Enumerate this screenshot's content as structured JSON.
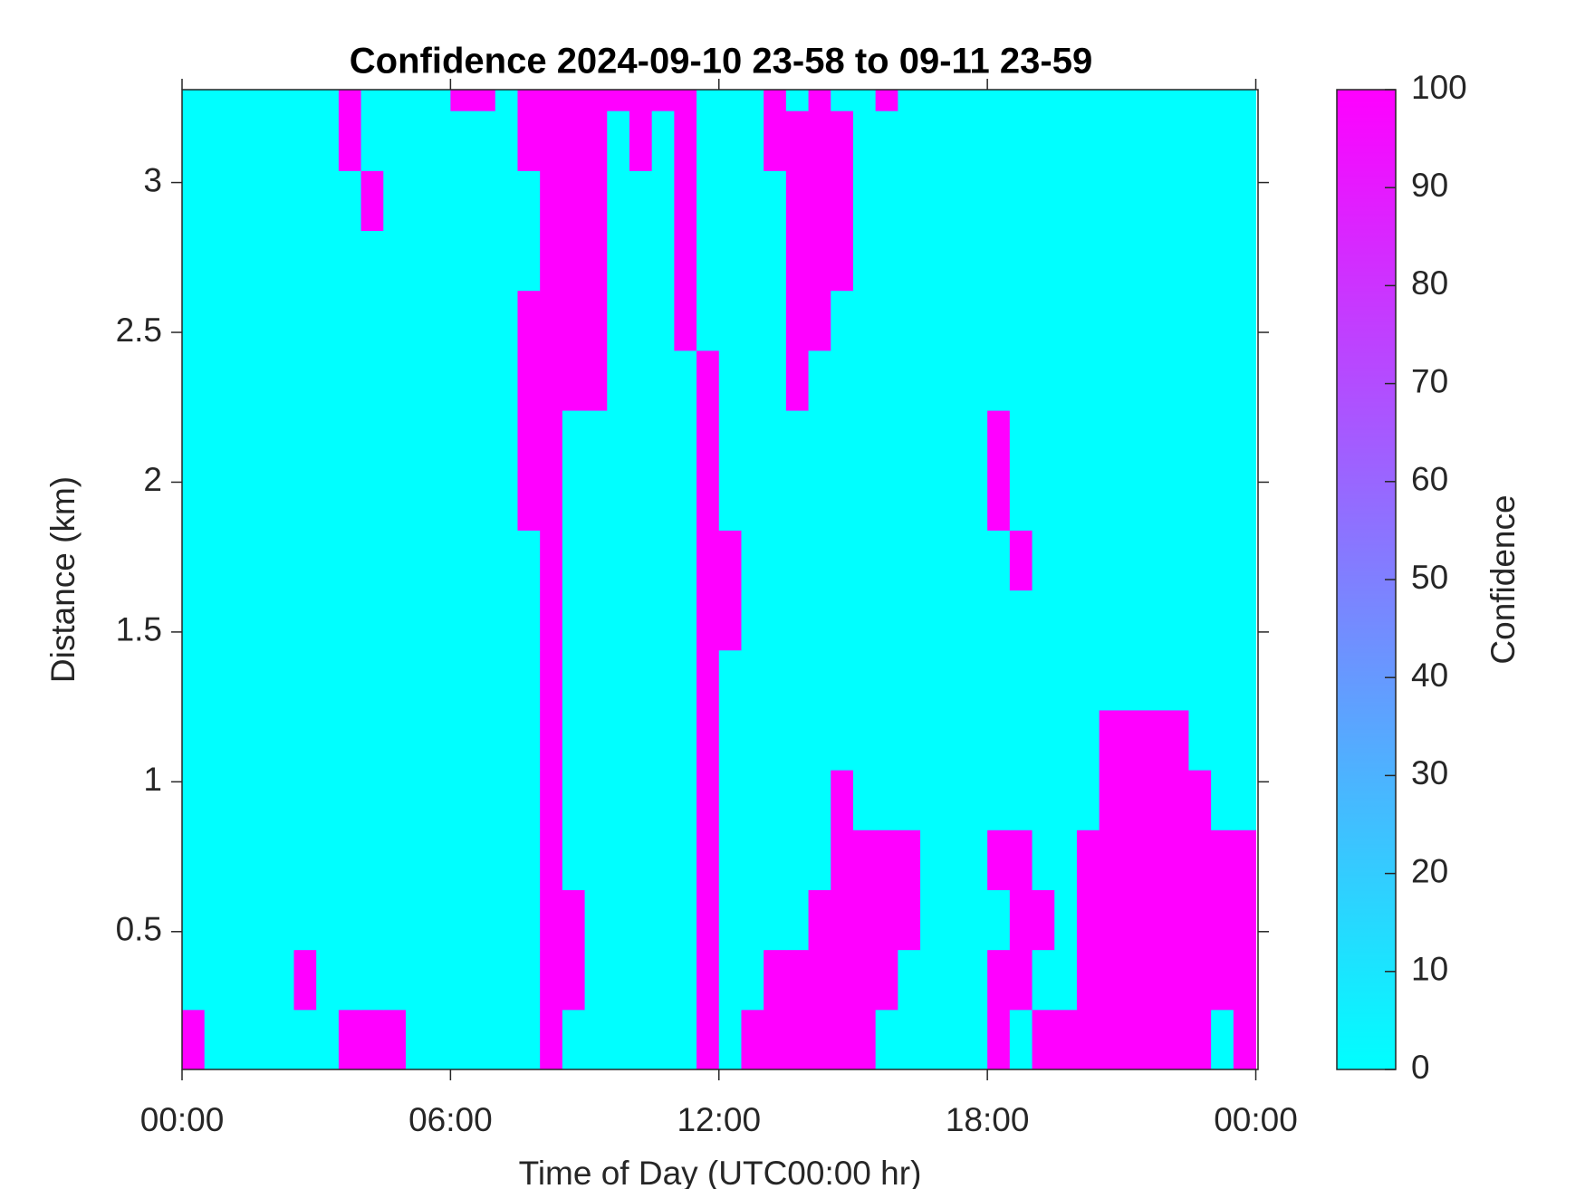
{
  "chart_data": {
    "type": "heatmap",
    "title": "Confidence 2024-09-10 23-58 to 09-11 23-59",
    "x_label": "Time of Day (UTC00:00 hr)",
    "y_label": "Distance (km)",
    "colorbar_label": "Confidence",
    "colormap": [
      "#00ffff",
      "#ff00ff"
    ],
    "clim": [
      0,
      100
    ],
    "cticks": [
      0,
      10,
      20,
      30,
      40,
      50,
      60,
      70,
      80,
      90,
      100
    ],
    "xlim": [
      0,
      24.05
    ],
    "xticks": [
      {
        "value": 0,
        "label": "00:00"
      },
      {
        "value": 6,
        "label": "06:00"
      },
      {
        "value": 12,
        "label": "12:00"
      },
      {
        "value": 18,
        "label": "18:00"
      },
      {
        "value": 24,
        "label": "00:00"
      }
    ],
    "ylim": [
      0.04,
      3.31
    ],
    "yticks": [
      0.5,
      1,
      1.5,
      2,
      2.5,
      3
    ],
    "x": [
      0.25,
      0.75,
      1.25,
      1.75,
      2.25,
      2.75,
      3.25,
      3.75,
      4.25,
      4.75,
      5.25,
      5.75,
      6.25,
      6.75,
      7.25,
      7.75,
      8.25,
      8.75,
      9.25,
      9.75,
      10.25,
      10.75,
      11.25,
      11.75,
      12.25,
      12.75,
      13.25,
      13.75,
      14.25,
      14.75,
      15.25,
      15.75,
      16.25,
      16.75,
      17.25,
      17.75,
      18.25,
      18.75,
      19.25,
      19.75,
      20.25,
      20.75,
      21.25,
      21.75,
      22.25,
      22.75,
      23.25,
      23.75
    ],
    "y": [
      0.14,
      0.34,
      0.54,
      0.74,
      0.94,
      1.14,
      1.34,
      1.54,
      1.74,
      1.94,
      2.14,
      2.34,
      2.54,
      2.74,
      2.94,
      3.14,
      3.34
    ],
    "z": [
      [
        100,
        0,
        0,
        0,
        0,
        0,
        0,
        100,
        100,
        100,
        0,
        0,
        0,
        0,
        0,
        0,
        100,
        0,
        0,
        0,
        0,
        0,
        0,
        100,
        0,
        100,
        100,
        100,
        100,
        100,
        100,
        0,
        0,
        0,
        0,
        0,
        100,
        0,
        100,
        100,
        100,
        100,
        100,
        100,
        100,
        100,
        0,
        100
      ],
      [
        0,
        0,
        0,
        0,
        0,
        100,
        0,
        0,
        0,
        0,
        0,
        0,
        0,
        0,
        0,
        0,
        100,
        100,
        0,
        0,
        0,
        0,
        0,
        100,
        0,
        0,
        100,
        100,
        100,
        100,
        100,
        100,
        0,
        0,
        0,
        0,
        100,
        100,
        0,
        0,
        100,
        100,
        100,
        100,
        100,
        100,
        100,
        100
      ],
      [
        0,
        0,
        0,
        0,
        0,
        0,
        0,
        0,
        0,
        0,
        0,
        0,
        0,
        0,
        0,
        0,
        100,
        100,
        0,
        0,
        0,
        0,
        0,
        100,
        0,
        0,
        0,
        0,
        100,
        100,
        100,
        100,
        100,
        0,
        0,
        0,
        0,
        100,
        100,
        0,
        100,
        100,
        100,
        100,
        100,
        100,
        100,
        100
      ],
      [
        0,
        0,
        0,
        0,
        0,
        0,
        0,
        0,
        0,
        0,
        0,
        0,
        0,
        0,
        0,
        0,
        100,
        0,
        0,
        0,
        0,
        0,
        0,
        100,
        0,
        0,
        0,
        0,
        0,
        100,
        100,
        100,
        100,
        0,
        0,
        0,
        100,
        100,
        0,
        0,
        100,
        100,
        100,
        100,
        100,
        100,
        100,
        100
      ],
      [
        0,
        0,
        0,
        0,
        0,
        0,
        0,
        0,
        0,
        0,
        0,
        0,
        0,
        0,
        0,
        0,
        100,
        0,
        0,
        0,
        0,
        0,
        0,
        100,
        0,
        0,
        0,
        0,
        0,
        100,
        0,
        0,
        0,
        0,
        0,
        0,
        0,
        0,
        0,
        0,
        0,
        100,
        100,
        100,
        100,
        100,
        0,
        0
      ],
      [
        0,
        0,
        0,
        0,
        0,
        0,
        0,
        0,
        0,
        0,
        0,
        0,
        0,
        0,
        0,
        0,
        100,
        0,
        0,
        0,
        0,
        0,
        0,
        100,
        0,
        0,
        0,
        0,
        0,
        0,
        0,
        0,
        0,
        0,
        0,
        0,
        0,
        0,
        0,
        0,
        0,
        100,
        100,
        100,
        100,
        0,
        0,
        0
      ],
      [
        0,
        0,
        0,
        0,
        0,
        0,
        0,
        0,
        0,
        0,
        0,
        0,
        0,
        0,
        0,
        0,
        100,
        0,
        0,
        0,
        0,
        0,
        0,
        100,
        0,
        0,
        0,
        0,
        0,
        0,
        0,
        0,
        0,
        0,
        0,
        0,
        0,
        0,
        0,
        0,
        0,
        0,
        0,
        0,
        0,
        0,
        0,
        0
      ],
      [
        0,
        0,
        0,
        0,
        0,
        0,
        0,
        0,
        0,
        0,
        0,
        0,
        0,
        0,
        0,
        0,
        100,
        0,
        0,
        0,
        0,
        0,
        0,
        100,
        100,
        0,
        0,
        0,
        0,
        0,
        0,
        0,
        0,
        0,
        0,
        0,
        0,
        0,
        0,
        0,
        0,
        0,
        0,
        0,
        0,
        0,
        0,
        0
      ],
      [
        0,
        0,
        0,
        0,
        0,
        0,
        0,
        0,
        0,
        0,
        0,
        0,
        0,
        0,
        0,
        0,
        100,
        0,
        0,
        0,
        0,
        0,
        0,
        100,
        100,
        0,
        0,
        0,
        0,
        0,
        0,
        0,
        0,
        0,
        0,
        0,
        0,
        100,
        0,
        0,
        0,
        0,
        0,
        0,
        0,
        0,
        0,
        0
      ],
      [
        0,
        0,
        0,
        0,
        0,
        0,
        0,
        0,
        0,
        0,
        0,
        0,
        0,
        0,
        0,
        100,
        100,
        0,
        0,
        0,
        0,
        0,
        0,
        100,
        0,
        0,
        0,
        0,
        0,
        0,
        0,
        0,
        0,
        0,
        0,
        0,
        100,
        0,
        0,
        0,
        0,
        0,
        0,
        0,
        0,
        0,
        0,
        0
      ],
      [
        0,
        0,
        0,
        0,
        0,
        0,
        0,
        0,
        0,
        0,
        0,
        0,
        0,
        0,
        0,
        100,
        100,
        0,
        0,
        0,
        0,
        0,
        0,
        100,
        0,
        0,
        0,
        0,
        0,
        0,
        0,
        0,
        0,
        0,
        0,
        0,
        100,
        0,
        0,
        0,
        0,
        0,
        0,
        0,
        0,
        0,
        0,
        0
      ],
      [
        0,
        0,
        0,
        0,
        0,
        0,
        0,
        0,
        0,
        0,
        0,
        0,
        0,
        0,
        0,
        100,
        100,
        100,
        100,
        0,
        0,
        0,
        0,
        100,
        0,
        0,
        0,
        100,
        0,
        0,
        0,
        0,
        0,
        0,
        0,
        0,
        0,
        0,
        0,
        0,
        0,
        0,
        0,
        0,
        0,
        0,
        0,
        0
      ],
      [
        0,
        0,
        0,
        0,
        0,
        0,
        0,
        0,
        0,
        0,
        0,
        0,
        0,
        0,
        0,
        100,
        100,
        100,
        100,
        0,
        0,
        0,
        100,
        0,
        0,
        0,
        0,
        100,
        100,
        0,
        0,
        0,
        0,
        0,
        0,
        0,
        0,
        0,
        0,
        0,
        0,
        0,
        0,
        0,
        0,
        0,
        0,
        0
      ],
      [
        0,
        0,
        0,
        0,
        0,
        0,
        0,
        0,
        0,
        0,
        0,
        0,
        0,
        0,
        0,
        0,
        100,
        100,
        100,
        0,
        0,
        0,
        100,
        0,
        0,
        0,
        0,
        100,
        100,
        100,
        0,
        0,
        0,
        0,
        0,
        0,
        0,
        0,
        0,
        0,
        0,
        0,
        0,
        0,
        0,
        0,
        0,
        0
      ],
      [
        0,
        0,
        0,
        0,
        0,
        0,
        0,
        0,
        100,
        0,
        0,
        0,
        0,
        0,
        0,
        0,
        100,
        100,
        100,
        0,
        0,
        0,
        100,
        0,
        0,
        0,
        0,
        100,
        100,
        100,
        0,
        0,
        0,
        0,
        0,
        0,
        0,
        0,
        0,
        0,
        0,
        0,
        0,
        0,
        0,
        0,
        0,
        0
      ],
      [
        0,
        0,
        0,
        0,
        0,
        0,
        0,
        100,
        0,
        0,
        0,
        0,
        0,
        0,
        0,
        100,
        100,
        100,
        100,
        0,
        100,
        0,
        100,
        0,
        0,
        0,
        100,
        100,
        100,
        100,
        0,
        0,
        0,
        0,
        0,
        0,
        0,
        0,
        0,
        0,
        0,
        0,
        0,
        0,
        0,
        0,
        0,
        0
      ],
      [
        0,
        0,
        0,
        0,
        0,
        0,
        0,
        100,
        0,
        0,
        0,
        0,
        100,
        100,
        0,
        100,
        100,
        100,
        100,
        100,
        100,
        100,
        100,
        0,
        0,
        0,
        100,
        0,
        100,
        0,
        0,
        100,
        0,
        0,
        0,
        0,
        0,
        0,
        0,
        0,
        0,
        0,
        0,
        0,
        0,
        0,
        0,
        0
      ]
    ]
  }
}
